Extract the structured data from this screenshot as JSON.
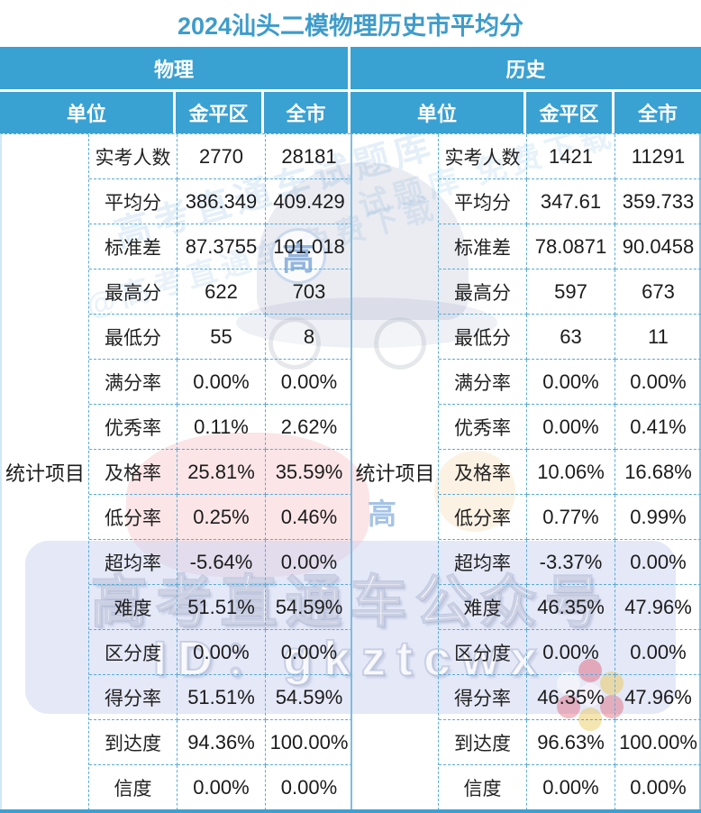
{
  "title": "2024汕头二模物理历史市平均分",
  "colors": {
    "header_blue": "#3AA1D3",
    "title_text": "#3E9CCB",
    "cell_border": "#58ACD8",
    "value_text": "#1B1B1B",
    "banner_fill": "#CDD6F1",
    "mascot_red": "#E05F69"
  },
  "table": {
    "sections": [
      {
        "subject": "物理",
        "unit_label": "单位",
        "district_label": "金平区",
        "city_label": "全市",
        "row_group_label": "统计项目",
        "rows": [
          {
            "label": "实考人数",
            "district": "2770",
            "city": "28181"
          },
          {
            "label": "平均分",
            "district": "386.349",
            "city": "409.429"
          },
          {
            "label": "标准差",
            "district": "87.3755",
            "city": "101.018"
          },
          {
            "label": "最高分",
            "district": "622",
            "city": "703"
          },
          {
            "label": "最低分",
            "district": "55",
            "city": "8"
          },
          {
            "label": "满分率",
            "district": "0.00%",
            "city": "0.00%"
          },
          {
            "label": "优秀率",
            "district": "0.11%",
            "city": "2.62%"
          },
          {
            "label": "及格率",
            "district": "25.81%",
            "city": "35.59%"
          },
          {
            "label": "低分率",
            "district": "0.25%",
            "city": "0.46%"
          },
          {
            "label": "超均率",
            "district": "-5.64%",
            "city": "0.00%"
          },
          {
            "label": "难度",
            "district": "51.51%",
            "city": "54.59%"
          },
          {
            "label": "区分度",
            "district": "0.00%",
            "city": "0.00%"
          },
          {
            "label": "得分率",
            "district": "51.51%",
            "city": "54.59%"
          },
          {
            "label": "到达度",
            "district": "94.36%",
            "city": "100.00%"
          },
          {
            "label": "信度",
            "district": "0.00%",
            "city": "0.00%"
          }
        ]
      },
      {
        "subject": "历史",
        "unit_label": "单位",
        "district_label": "金平区",
        "city_label": "全市",
        "row_group_label": "统计项目",
        "rows": [
          {
            "label": "实考人数",
            "district": "1421",
            "city": "11291"
          },
          {
            "label": "平均分",
            "district": "347.61",
            "city": "359.733"
          },
          {
            "label": "标准差",
            "district": "78.0871",
            "city": "90.0458"
          },
          {
            "label": "最高分",
            "district": "597",
            "city": "673"
          },
          {
            "label": "最低分",
            "district": "63",
            "city": "11"
          },
          {
            "label": "满分率",
            "district": "0.00%",
            "city": "0.00%"
          },
          {
            "label": "优秀率",
            "district": "0.00%",
            "city": "0.41%"
          },
          {
            "label": "及格率",
            "district": "10.06%",
            "city": "16.68%"
          },
          {
            "label": "低分率",
            "district": "0.77%",
            "city": "0.99%"
          },
          {
            "label": "超均率",
            "district": "-3.37%",
            "city": "0.00%"
          },
          {
            "label": "难度",
            "district": "46.35%",
            "city": "47.96%"
          },
          {
            "label": "区分度",
            "district": "0.00%",
            "city": "0.00%"
          },
          {
            "label": "得分率",
            "district": "46.35%",
            "city": "47.96%"
          },
          {
            "label": "到达度",
            "district": "96.63%",
            "city": "100.00%"
          },
          {
            "label": "信度",
            "district": "0.00%",
            "city": "0.00%"
          }
        ]
      }
    ]
  },
  "watermark": {
    "line1": "高考直通车公众号",
    "line2": "ID：gkztcwx",
    "badge_char": "高",
    "gao_char": "高",
    "diag1": "高考直通车试题库",
    "diag2": "@高考直通车 免费下载",
    "diag3": "试题库 免费下载"
  }
}
